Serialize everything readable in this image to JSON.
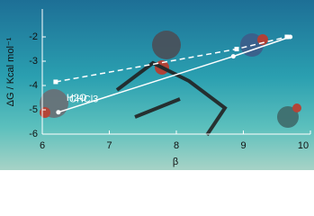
{
  "chart_data": {
    "type": "scatter",
    "x_label": "β",
    "y_label": "ΔG / Kcal mol⁻¹",
    "xlim": [
      6,
      10
    ],
    "xticks": [
      6,
      7,
      8,
      9,
      10
    ],
    "ylim": [
      -6,
      -1
    ],
    "yticks": [
      -6,
      -5,
      -4,
      -3,
      -2
    ],
    "series": [
      {
        "name": "CHCl3",
        "color": "#ffffff",
        "marker": "circle",
        "line": "solid",
        "x": [
          6.24,
          8.85,
          9.7
        ],
        "values": [
          -5.1,
          -2.8,
          -2.0
        ]
      },
      {
        "name": "H2O",
        "color": "#ffffff",
        "marker": "square",
        "line": "dashed",
        "x": [
          6.2,
          8.9,
          9.65
        ],
        "values": [
          -3.85,
          -2.5,
          -2.0
        ]
      }
    ]
  }
}
